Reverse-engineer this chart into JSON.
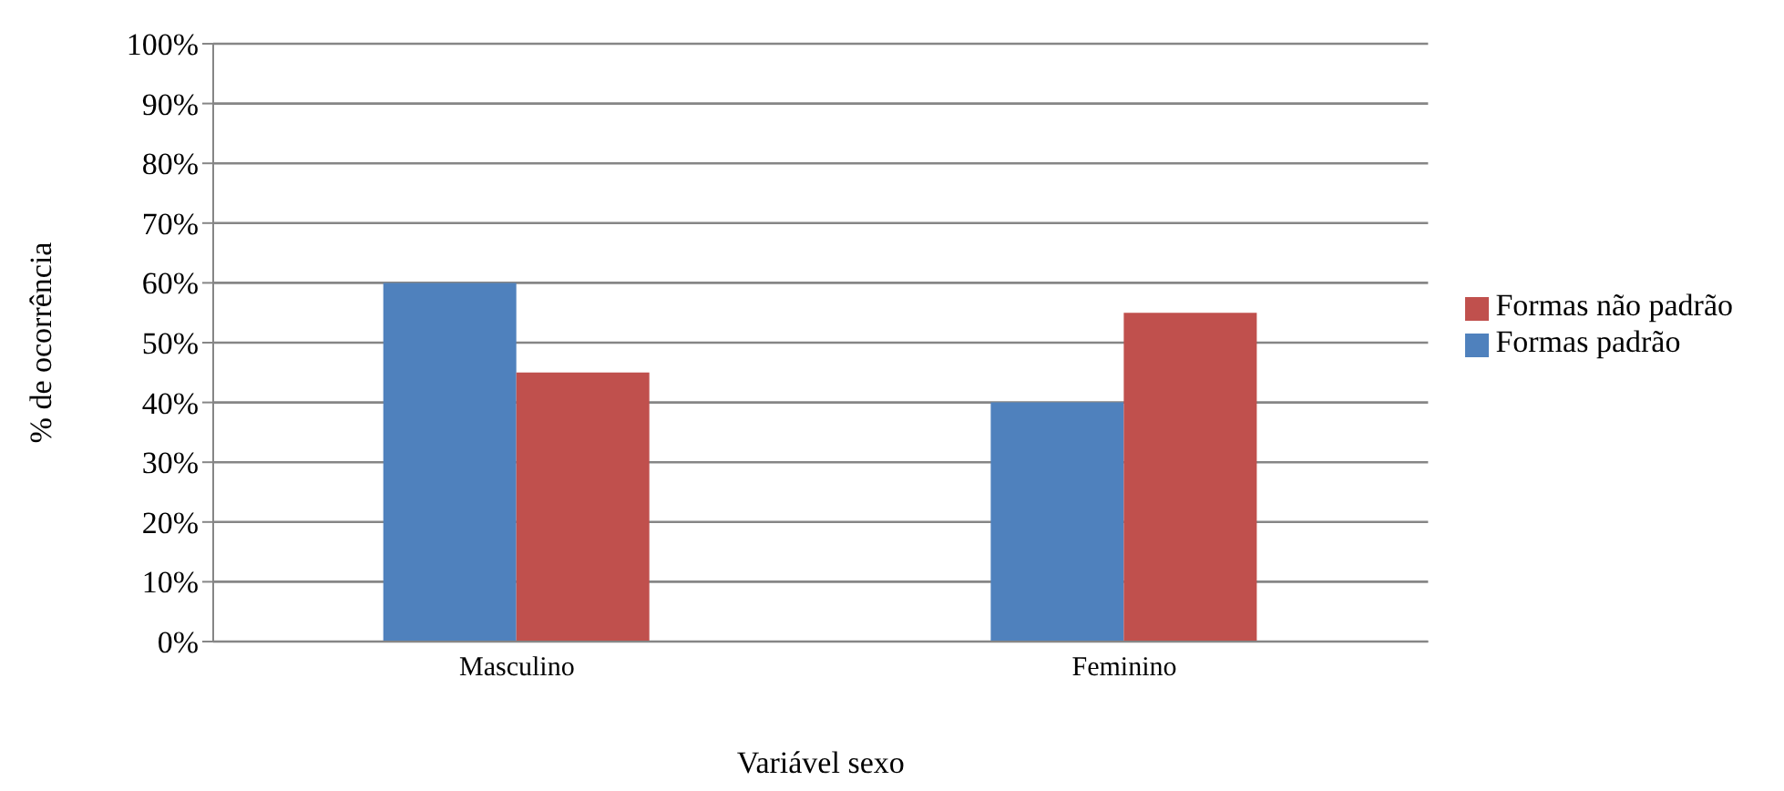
{
  "chart_data": {
    "type": "bar",
    "categories": [
      "Masculino",
      "Feminino"
    ],
    "series": [
      {
        "name": "Formas padrão",
        "color": "#4f81bd",
        "values": [
          60,
          40
        ]
      },
      {
        "name": "Formas não padrão",
        "color": "#c0504d",
        "values": [
          45,
          55
        ]
      }
    ],
    "xlabel": "Variável sexo",
    "ylabel": "% de ocorrência",
    "ylim": [
      0,
      100
    ],
    "yticks": [
      {
        "value": 0,
        "label": "0%"
      },
      {
        "value": 10,
        "label": "10%"
      },
      {
        "value": 20,
        "label": "20%"
      },
      {
        "value": 30,
        "label": "30%"
      },
      {
        "value": 40,
        "label": "40%"
      },
      {
        "value": 50,
        "label": "50%"
      },
      {
        "value": 60,
        "label": "60%"
      },
      {
        "value": 70,
        "label": "70%"
      },
      {
        "value": 80,
        "label": "80%"
      },
      {
        "value": 90,
        "label": "90%"
      },
      {
        "value": 100,
        "label": "100%"
      }
    ],
    "grid": "y",
    "legend": "right"
  }
}
